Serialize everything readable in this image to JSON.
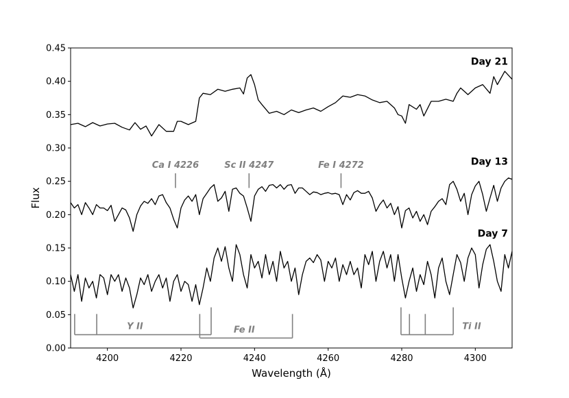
{
  "chart_data": {
    "type": "line",
    "xlabel": "Wavelength (Å)",
    "ylabel": "Flux",
    "xlim": [
      4190,
      4310
    ],
    "ylim": [
      0.0,
      0.45
    ],
    "xticks": [
      4200,
      4220,
      4240,
      4260,
      4280,
      4300
    ],
    "yticks": [
      0.0,
      0.05,
      0.1,
      0.15,
      0.2,
      0.25,
      0.3,
      0.35,
      0.4,
      0.45
    ],
    "xtick_labels": [
      "4200",
      "4220",
      "4240",
      "4260",
      "4280",
      "4300"
    ],
    "ytick_labels": [
      "0.00",
      "0.05",
      "0.10",
      "0.15",
      "0.20",
      "0.25",
      "0.30",
      "0.35",
      "0.40",
      "0.45"
    ],
    "grid": false,
    "line_color": "#000000",
    "marker_color": "#808080",
    "series": [
      {
        "name": "Day 21",
        "x": [
          4190,
          4192,
          4194,
          4196,
          4198,
          4200,
          4202,
          4204,
          4206,
          4207.5,
          4209,
          4210.5,
          4212,
          4214,
          4216,
          4218,
          4219,
          4220,
          4222,
          4224,
          4225,
          4226,
          4228,
          4230,
          4232,
          4234,
          4236,
          4237,
          4238,
          4239,
          4240,
          4241,
          4242,
          4244,
          4246,
          4248,
          4250,
          4252,
          4254,
          4256,
          4258,
          4260,
          4262,
          4264,
          4266,
          4268,
          4270,
          4272,
          4274,
          4276,
          4278,
          4279,
          4280,
          4281,
          4282,
          4284,
          4285,
          4286,
          4288,
          4290,
          4292,
          4294,
          4295,
          4296,
          4298,
          4300,
          4302,
          4304,
          4305,
          4306,
          4308,
          4310
        ],
        "y": [
          0.335,
          0.337,
          0.332,
          0.338,
          0.333,
          0.336,
          0.337,
          0.331,
          0.327,
          0.338,
          0.328,
          0.333,
          0.318,
          0.335,
          0.325,
          0.325,
          0.34,
          0.34,
          0.335,
          0.34,
          0.375,
          0.382,
          0.38,
          0.388,
          0.385,
          0.388,
          0.39,
          0.381,
          0.405,
          0.41,
          0.395,
          0.372,
          0.365,
          0.352,
          0.355,
          0.35,
          0.357,
          0.353,
          0.357,
          0.36,
          0.355,
          0.362,
          0.368,
          0.378,
          0.376,
          0.38,
          0.378,
          0.372,
          0.368,
          0.37,
          0.36,
          0.35,
          0.348,
          0.337,
          0.365,
          0.358,
          0.365,
          0.348,
          0.37,
          0.37,
          0.373,
          0.37,
          0.382,
          0.39,
          0.38,
          0.39,
          0.395,
          0.382,
          0.407,
          0.395,
          0.415,
          0.403
        ]
      },
      {
        "name": "Day 13",
        "x": [
          4190,
          4191,
          4192,
          4193,
          4194,
          4195,
          4196,
          4197,
          4198,
          4199,
          4200,
          4201,
          4202,
          4203,
          4204,
          4205,
          4206,
          4207,
          4208,
          4209,
          4210,
          4211,
          4212,
          4213,
          4214,
          4215,
          4216,
          4217,
          4218,
          4219,
          4220,
          4221,
          4222,
          4223,
          4224,
          4225,
          4226,
          4227,
          4228,
          4229,
          4230,
          4231,
          4232,
          4233,
          4234,
          4235,
          4236,
          4237,
          4238,
          4239,
          4240,
          4241,
          4242,
          4243,
          4244,
          4245,
          4246,
          4247,
          4248,
          4249,
          4250,
          4251,
          4252,
          4253,
          4254,
          4255,
          4256,
          4257,
          4258,
          4259,
          4260,
          4261,
          4262,
          4263,
          4264,
          4265,
          4266,
          4267,
          4268,
          4269,
          4270,
          4271,
          4272,
          4273,
          4274,
          4275,
          4276,
          4277,
          4278,
          4279,
          4280,
          4281,
          4282,
          4283,
          4284,
          4285,
          4286,
          4287,
          4288,
          4289,
          4290,
          4291,
          4292,
          4293,
          4294,
          4295,
          4296,
          4297,
          4298,
          4299,
          4300,
          4301,
          4302,
          4303,
          4304,
          4305,
          4306,
          4307,
          4308,
          4309,
          4310
        ],
        "y": [
          0.218,
          0.21,
          0.215,
          0.2,
          0.218,
          0.21,
          0.2,
          0.215,
          0.21,
          0.21,
          0.206,
          0.214,
          0.19,
          0.2,
          0.21,
          0.207,
          0.195,
          0.175,
          0.2,
          0.213,
          0.22,
          0.217,
          0.224,
          0.215,
          0.228,
          0.23,
          0.218,
          0.21,
          0.193,
          0.18,
          0.21,
          0.222,
          0.228,
          0.22,
          0.23,
          0.2,
          0.224,
          0.232,
          0.24,
          0.245,
          0.22,
          0.225,
          0.235,
          0.205,
          0.238,
          0.24,
          0.232,
          0.228,
          0.21,
          0.19,
          0.228,
          0.238,
          0.242,
          0.235,
          0.244,
          0.245,
          0.24,
          0.245,
          0.238,
          0.244,
          0.245,
          0.232,
          0.24,
          0.24,
          0.235,
          0.23,
          0.234,
          0.233,
          0.23,
          0.232,
          0.233,
          0.231,
          0.232,
          0.23,
          0.215,
          0.23,
          0.222,
          0.233,
          0.236,
          0.232,
          0.232,
          0.235,
          0.225,
          0.205,
          0.215,
          0.222,
          0.21,
          0.217,
          0.2,
          0.212,
          0.18,
          0.206,
          0.21,
          0.195,
          0.205,
          0.19,
          0.2,
          0.185,
          0.205,
          0.212,
          0.22,
          0.224,
          0.215,
          0.245,
          0.25,
          0.238,
          0.22,
          0.232,
          0.2,
          0.23,
          0.243,
          0.25,
          0.23,
          0.205,
          0.225,
          0.244,
          0.22,
          0.24,
          0.25,
          0.255,
          0.253
        ]
      },
      {
        "name": "Day 7",
        "x": [
          4190,
          4191,
          4192,
          4193,
          4194,
          4195,
          4196,
          4197,
          4198,
          4199,
          4200,
          4201,
          4202,
          4203,
          4204,
          4205,
          4206,
          4207,
          4208,
          4209,
          4210,
          4211,
          4212,
          4213,
          4214,
          4215,
          4216,
          4217,
          4218,
          4219,
          4220,
          4221,
          4222,
          4223,
          4224,
          4225,
          4226,
          4227,
          4228,
          4229,
          4230,
          4231,
          4232,
          4233,
          4234,
          4235,
          4236,
          4237,
          4238,
          4239,
          4240,
          4241,
          4242,
          4243,
          4244,
          4245,
          4246,
          4247,
          4248,
          4249,
          4250,
          4251,
          4252,
          4253,
          4254,
          4255,
          4256,
          4257,
          4258,
          4259,
          4260,
          4261,
          4262,
          4263,
          4264,
          4265,
          4266,
          4267,
          4268,
          4269,
          4270,
          4271,
          4272,
          4273,
          4274,
          4275,
          4276,
          4277,
          4278,
          4279,
          4280,
          4281,
          4282,
          4283,
          4284,
          4285,
          4286,
          4287,
          4288,
          4289,
          4290,
          4291,
          4292,
          4293,
          4294,
          4295,
          4296,
          4297,
          4298,
          4299,
          4300,
          4301,
          4302,
          4303,
          4304,
          4305,
          4306,
          4307,
          4308,
          4309,
          4310
        ],
        "y": [
          0.11,
          0.085,
          0.11,
          0.07,
          0.105,
          0.09,
          0.1,
          0.075,
          0.11,
          0.105,
          0.08,
          0.11,
          0.1,
          0.11,
          0.085,
          0.105,
          0.09,
          0.06,
          0.08,
          0.105,
          0.095,
          0.11,
          0.085,
          0.1,
          0.11,
          0.09,
          0.105,
          0.07,
          0.1,
          0.11,
          0.085,
          0.1,
          0.095,
          0.07,
          0.095,
          0.065,
          0.09,
          0.12,
          0.1,
          0.135,
          0.15,
          0.13,
          0.152,
          0.12,
          0.1,
          0.155,
          0.14,
          0.11,
          0.09,
          0.14,
          0.12,
          0.13,
          0.105,
          0.14,
          0.11,
          0.13,
          0.1,
          0.145,
          0.12,
          0.13,
          0.1,
          0.12,
          0.08,
          0.11,
          0.13,
          0.135,
          0.128,
          0.14,
          0.132,
          0.1,
          0.13,
          0.12,
          0.135,
          0.1,
          0.125,
          0.11,
          0.13,
          0.11,
          0.12,
          0.09,
          0.14,
          0.125,
          0.145,
          0.1,
          0.13,
          0.145,
          0.12,
          0.14,
          0.1,
          0.14,
          0.105,
          0.075,
          0.1,
          0.12,
          0.085,
          0.11,
          0.095,
          0.13,
          0.11,
          0.075,
          0.12,
          0.135,
          0.1,
          0.08,
          0.11,
          0.14,
          0.128,
          0.1,
          0.135,
          0.15,
          0.14,
          0.09,
          0.125,
          0.148,
          0.155,
          0.13,
          0.1,
          0.085,
          0.14,
          0.12,
          0.145
        ]
      }
    ],
    "day_labels": [
      {
        "text": "Day 21",
        "y": 0.43
      },
      {
        "text": "Day 13",
        "y": 0.28
      },
      {
        "text": "Day 7",
        "y": 0.172
      }
    ],
    "line_ids": [
      {
        "text": "Ca I 4226",
        "x": 4218.5
      },
      {
        "text": "Sc II 4247",
        "x": 4238.5
      },
      {
        "text": "Fe I 4272",
        "x": 4263.5
      }
    ],
    "line_groups": [
      {
        "text": "Y II",
        "lines": [
          4191.1,
          4197.1,
          4225.1,
          4228.2
        ],
        "label_x": 4207.5
      },
      {
        "text": "Fe II",
        "lines": [
          4225.2,
          4250.3
        ],
        "label_x": 4237.2
      },
      {
        "text": "Ti II",
        "lines": [
          4279.8,
          4282.1,
          4286.4,
          4294.0
        ],
        "label_x": 4299.0
      }
    ]
  }
}
